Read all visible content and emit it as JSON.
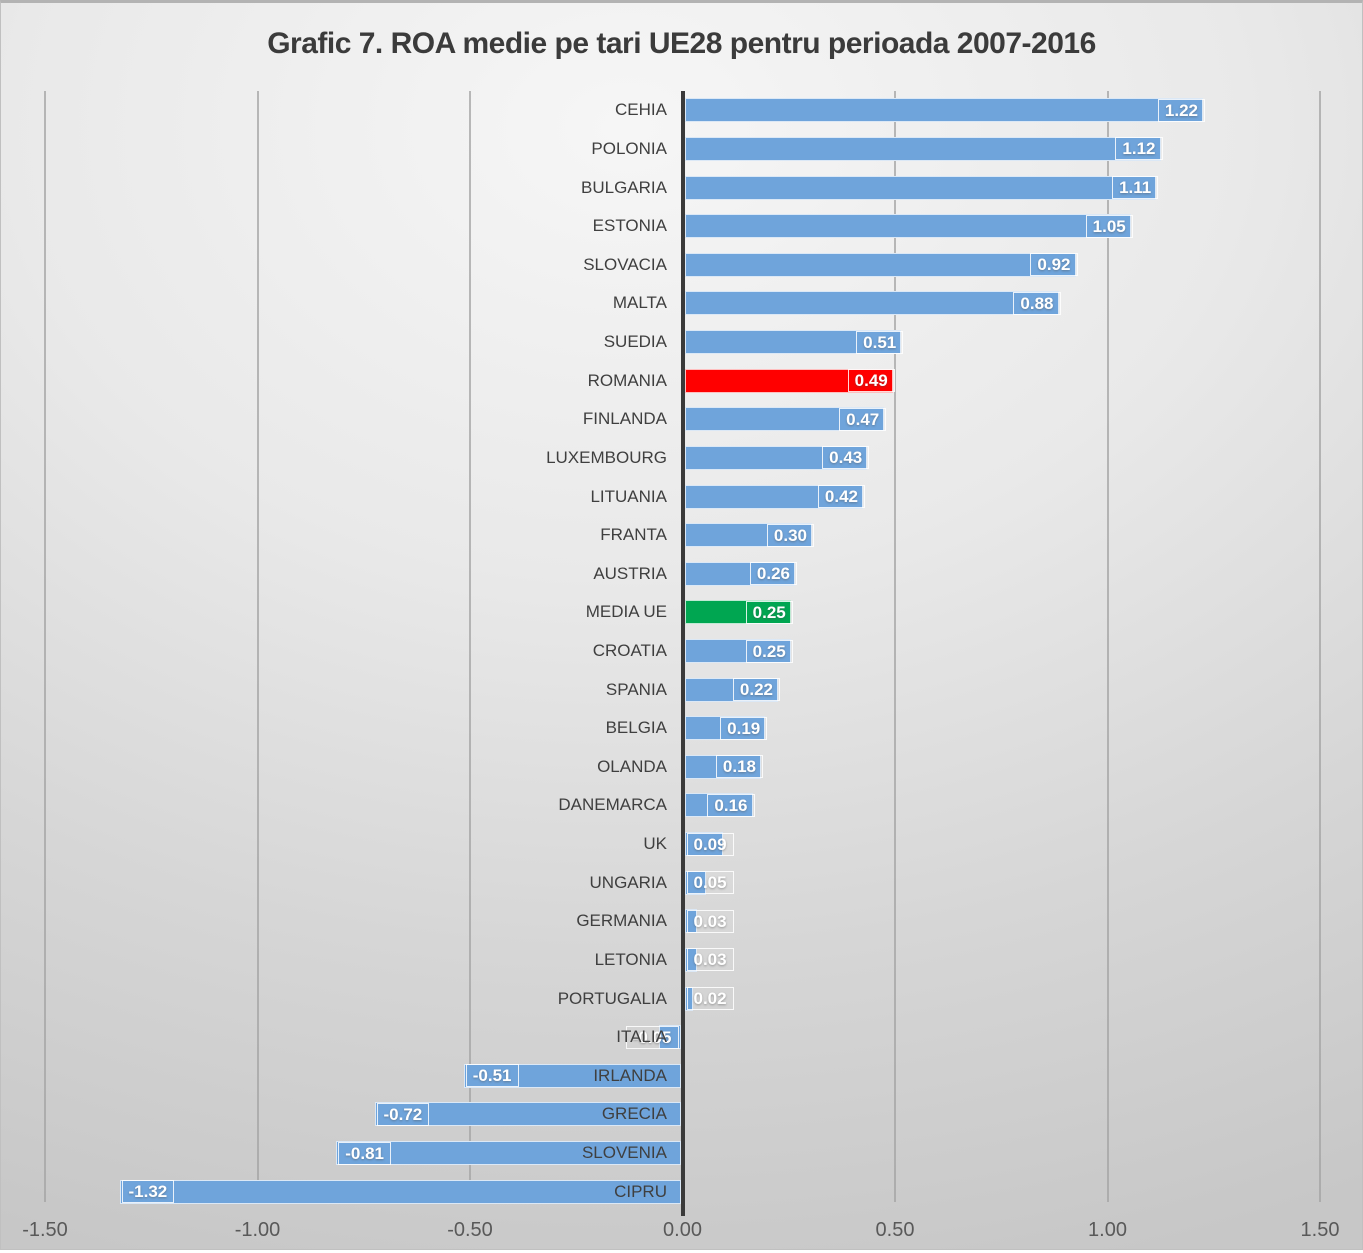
{
  "chart_data": {
    "type": "bar",
    "orientation": "horizontal",
    "title": "Grafic 7. ROA medie pe tari UE28 pentru perioada 2007-2016",
    "categories": [
      "CEHIA",
      "POLONIA",
      "BULGARIA",
      "ESTONIA",
      "SLOVACIA",
      "MALTA",
      "SUEDIA",
      "ROMANIA",
      "FINLANDA",
      "LUXEMBOURG",
      "LITUANIA",
      "FRANTA",
      "AUSTRIA",
      "MEDIA UE",
      "CROATIA",
      "SPANIA",
      "BELGIA",
      "OLANDA",
      "DANEMARCA",
      "UK",
      "UNGARIA",
      "GERMANIA",
      "LETONIA",
      "PORTUGALIA",
      "ITALIA",
      "IRLANDA",
      "GRECIA",
      "SLOVENIA",
      "CIPRU"
    ],
    "values": [
      1.22,
      1.12,
      1.11,
      1.05,
      0.92,
      0.88,
      0.51,
      0.49,
      0.47,
      0.43,
      0.42,
      0.3,
      0.26,
      0.25,
      0.25,
      0.22,
      0.19,
      0.18,
      0.16,
      0.09,
      0.05,
      0.03,
      0.03,
      0.02,
      -0.05,
      -0.51,
      -0.72,
      -0.81,
      -1.32
    ],
    "value_labels": [
      "1.22",
      "1.12",
      "1.11",
      "1.05",
      "0.92",
      "0.88",
      "0.51",
      "0.49",
      "0.47",
      "0.43",
      "0.42",
      "0.30",
      "0.26",
      "0.25",
      "0.25",
      "0.22",
      "0.19",
      "0.18",
      "0.16",
      "0.09",
      "0.05",
      "0.03",
      "0.03",
      "0.02",
      "-0.05",
      "-0.51",
      "-0.72",
      "-0.81",
      "-1.32"
    ],
    "bar_color": "#6FA4DB",
    "highlight_colors": {
      "ROMANIA": "#FF0000",
      "MEDIA UE": "#00A651"
    },
    "xlim": [
      -1.5,
      1.5
    ],
    "x_ticks": [
      -1.5,
      -1.0,
      -0.5,
      0.0,
      0.5,
      1.0,
      1.5
    ],
    "x_tick_labels": [
      "-1.50",
      "-1.00",
      "-0.50",
      "0.00",
      "0.50",
      "1.00",
      "1.50"
    ],
    "grid": true,
    "legend": false,
    "value_label_color": "#FFFFFF",
    "category_label_color": "#3F3F3F",
    "axis_color": "#3A3A3A",
    "gridline_color": "#A3A3A3"
  }
}
